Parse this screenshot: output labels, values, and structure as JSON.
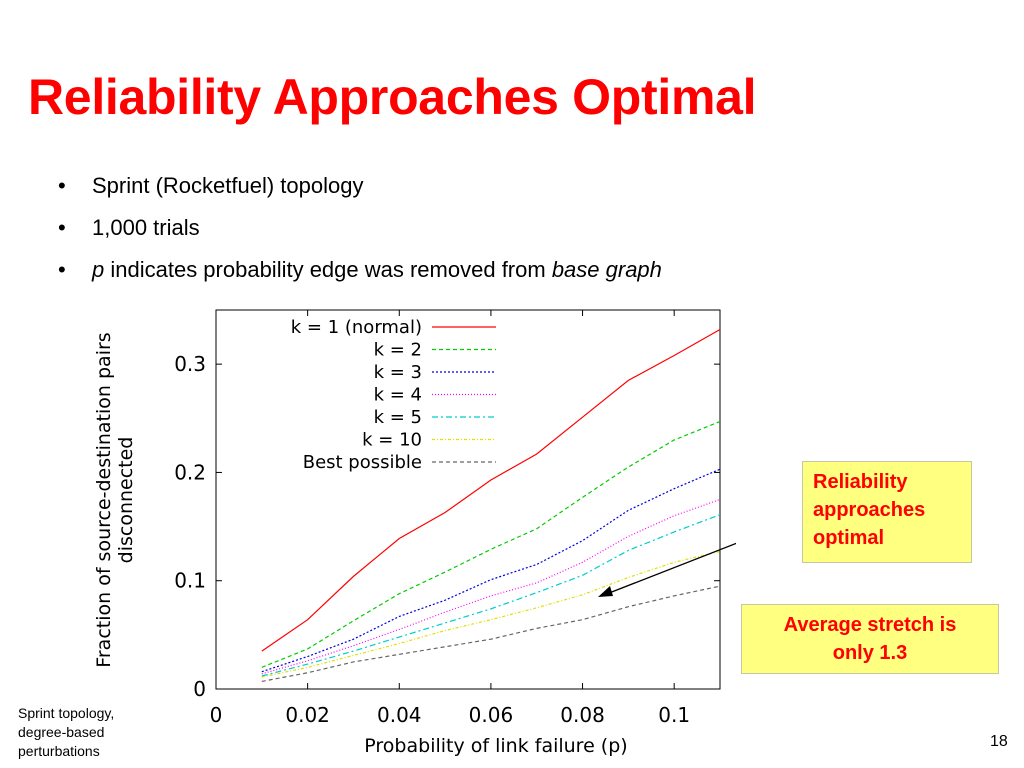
{
  "slide": {
    "title": "Reliability Approaches Optimal",
    "bullets": [
      {
        "bullet": "•",
        "parts": [
          {
            "text": "Sprint (Rocketfuel) topology",
            "italic": false
          }
        ]
      },
      {
        "bullet": "•",
        "parts": [
          {
            "text": "1,000 trials",
            "italic": false
          }
        ]
      },
      {
        "bullet": "•",
        "parts": [
          {
            "text": "p",
            "italic": true
          },
          {
            "text": " indicates probability edge was removed from ",
            "italic": false
          },
          {
            "text": "base graph",
            "italic": true
          }
        ]
      }
    ],
    "callouts": [
      {
        "lines": [
          "Reliability",
          "approaches",
          "optimal"
        ]
      },
      {
        "lines": [
          "Average stretch is",
          "only 1.3"
        ]
      }
    ],
    "footnote_lines": [
      "Sprint topology,",
      "degree-based",
      "perturbations"
    ],
    "page_number": "18",
    "colors": {
      "title": "#ff0000",
      "callout_bg": "#ffff80",
      "callout_text": "#ff0000"
    }
  },
  "chart_data": {
    "type": "line",
    "xlabel": "Probability of link failure (p)",
    "ylabel_lines": [
      "Fraction of source-destination pairs",
      "disconnected"
    ],
    "xlim": [
      0,
      0.11
    ],
    "ylim": [
      0,
      0.35
    ],
    "xticks": [
      {
        "v": 0,
        "label": "0"
      },
      {
        "v": 0.02,
        "label": "0.02"
      },
      {
        "v": 0.04,
        "label": "0.04"
      },
      {
        "v": 0.06,
        "label": "0.06"
      },
      {
        "v": 0.08,
        "label": "0.08"
      },
      {
        "v": 0.1,
        "label": "0.1"
      }
    ],
    "yticks": [
      {
        "v": 0,
        "label": "0"
      },
      {
        "v": 0.1,
        "label": "0.1"
      },
      {
        "v": 0.2,
        "label": "0.2"
      },
      {
        "v": 0.3,
        "label": "0.3"
      }
    ],
    "grid": false,
    "legend_position": "top-right",
    "x": [
      0.01,
      0.02,
      0.03,
      0.04,
      0.05,
      0.06,
      0.07,
      0.08,
      0.09,
      0.1,
      0.11
    ],
    "series": [
      {
        "name": "k = 1 (normal)",
        "color": "#ff0000",
        "dash": "",
        "values": [
          0.035,
          0.064,
          0.104,
          0.139,
          0.163,
          0.193,
          0.217,
          0.251,
          0.285,
          0.308,
          0.332
        ]
      },
      {
        "name": "k = 2",
        "color": "#00cc00",
        "dash": "4,3",
        "values": [
          0.02,
          0.037,
          0.063,
          0.088,
          0.108,
          0.129,
          0.148,
          0.177,
          0.205,
          0.23,
          0.247
        ]
      },
      {
        "name": "k = 3",
        "color": "#0000dd",
        "dash": "2,2",
        "values": [
          0.016,
          0.03,
          0.046,
          0.067,
          0.082,
          0.101,
          0.115,
          0.137,
          0.165,
          0.185,
          0.203
        ]
      },
      {
        "name": "k = 4",
        "color": "#ff00ff",
        "dash": "1,2",
        "values": [
          0.014,
          0.026,
          0.04,
          0.055,
          0.071,
          0.086,
          0.098,
          0.117,
          0.141,
          0.16,
          0.175
        ]
      },
      {
        "name": "k = 5",
        "color": "#00cccc",
        "dash": "6,3,2,3",
        "values": [
          0.012,
          0.023,
          0.035,
          0.048,
          0.061,
          0.074,
          0.089,
          0.105,
          0.128,
          0.145,
          0.161
        ]
      },
      {
        "name": "k = 10",
        "color": "#e0e000",
        "dash": "3,2,1,2",
        "values": [
          0.011,
          0.02,
          0.031,
          0.042,
          0.054,
          0.064,
          0.075,
          0.087,
          0.103,
          0.117,
          0.127
        ]
      },
      {
        "name": "Best possible",
        "color": "#666666",
        "dash": "4,3",
        "values": [
          0.007,
          0.015,
          0.025,
          0.032,
          0.039,
          0.046,
          0.056,
          0.064,
          0.076,
          0.086,
          0.095
        ]
      }
    ]
  }
}
